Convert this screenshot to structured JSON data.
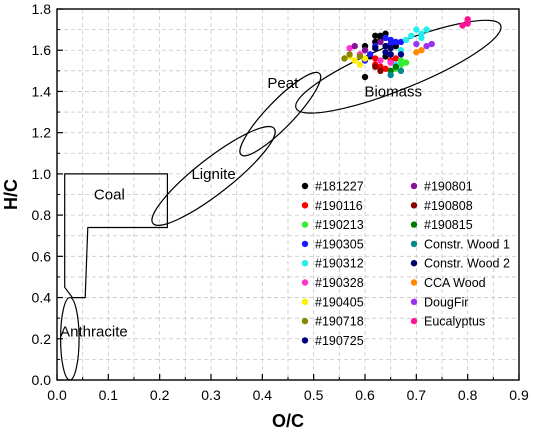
{
  "chart_data": {
    "type": "scatter",
    "xlabel": "O/C",
    "ylabel": "H/C",
    "xlim": [
      0,
      0.9
    ],
    "ylim": [
      0,
      1.8
    ],
    "xticks": [
      "0.0",
      "0.1",
      "0.2",
      "0.3",
      "0.4",
      "0.5",
      "0.6",
      "0.7",
      "0.8",
      "0.9"
    ],
    "yticks": [
      "0.0",
      "0.2",
      "0.4",
      "0.6",
      "0.8",
      "1.0",
      "1.2",
      "1.4",
      "1.6",
      "1.8"
    ],
    "grid": true,
    "legend_position": "right, inside plot",
    "regions": [
      {
        "label": "Anthracite",
        "shape": "ellipse",
        "cx": 0.025,
        "cy": 0.2,
        "rx": 0.018,
        "ry": 0.2
      },
      {
        "label": "Coal",
        "shape": "outline",
        "points": [
          [
            0.015,
            1.0
          ],
          [
            0.215,
            1.0
          ],
          [
            0.215,
            0.74
          ],
          [
            0.06,
            0.74
          ],
          [
            0.055,
            0.4
          ],
          [
            0.03,
            0.4
          ],
          [
            0.015,
            0.45
          ]
        ]
      },
      {
        "label": "Lignite",
        "shape": "ellipse",
        "cx": 0.305,
        "cy": 0.99,
        "rx": 0.15,
        "ry": 0.085,
        "angle_deg": -38
      },
      {
        "label": "Peat",
        "shape": "ellipse",
        "cx": 0.435,
        "cy": 1.29,
        "rx": 0.11,
        "ry": 0.065,
        "angle_deg": -46
      },
      {
        "label": "Biomass",
        "shape": "ellipse",
        "cx": 0.665,
        "cy": 1.52,
        "rx": 0.215,
        "ry": 0.11,
        "angle_deg": -22
      }
    ],
    "region_labels": [
      {
        "text": "Anthracite",
        "x": 0.072,
        "y": 0.235
      },
      {
        "text": "Coal",
        "x": 0.102,
        "y": 0.9
      },
      {
        "text": "Lignite",
        "x": 0.305,
        "y": 1.0
      },
      {
        "text": "Peat",
        "x": 0.44,
        "y": 1.44
      },
      {
        "text": "Biomass",
        "x": 0.655,
        "y": 1.4
      }
    ],
    "series": [
      {
        "name": "#181227",
        "color": "#000000",
        "points": [
          [
            0.62,
            1.67
          ],
          [
            0.63,
            1.67
          ],
          [
            0.64,
            1.68
          ],
          [
            0.6,
            1.62
          ],
          [
            0.62,
            1.64
          ],
          [
            0.63,
            1.65
          ],
          [
            0.61,
            1.57
          ],
          [
            0.6,
            1.47
          ],
          [
            0.64,
            1.57
          ],
          [
            0.66,
            1.62
          ]
        ]
      },
      {
        "name": "#190116",
        "color": "#ff0000",
        "points": [
          [
            0.62,
            1.53
          ],
          [
            0.63,
            1.52
          ],
          [
            0.64,
            1.51
          ],
          [
            0.65,
            1.55
          ],
          [
            0.62,
            1.56
          ],
          [
            0.66,
            1.56
          ]
        ]
      },
      {
        "name": "#190213",
        "color": "#33ee33",
        "points": [
          [
            0.67,
            1.53
          ],
          [
            0.66,
            1.51
          ],
          [
            0.67,
            1.55
          ],
          [
            0.65,
            1.58
          ],
          [
            0.68,
            1.54
          ]
        ]
      },
      {
        "name": "#190305",
        "color": "#1a1aff",
        "points": [
          [
            0.67,
            1.64
          ],
          [
            0.65,
            1.65
          ],
          [
            0.64,
            1.66
          ],
          [
            0.65,
            1.63
          ],
          [
            0.6,
            1.55
          ],
          [
            0.62,
            1.62
          ],
          [
            0.66,
            1.64
          ],
          [
            0.61,
            1.58
          ]
        ]
      },
      {
        "name": "#190312",
        "color": "#22eeee",
        "points": [
          [
            0.7,
            1.7
          ],
          [
            0.71,
            1.68
          ],
          [
            0.72,
            1.7
          ],
          [
            0.68,
            1.65
          ],
          [
            0.69,
            1.67
          ],
          [
            0.71,
            1.66
          ],
          [
            0.67,
            1.6
          ],
          [
            0.66,
            1.53
          ]
        ]
      },
      {
        "name": "#190328",
        "color": "#ff33cc",
        "points": [
          [
            0.57,
            1.61
          ],
          [
            0.59,
            1.58
          ],
          [
            0.63,
            1.55
          ],
          [
            0.65,
            1.54
          ]
        ]
      },
      {
        "name": "#190405",
        "color": "#ffee00",
        "points": [
          [
            0.57,
            1.57
          ],
          [
            0.58,
            1.55
          ],
          [
            0.6,
            1.56
          ],
          [
            0.59,
            1.53
          ]
        ]
      },
      {
        "name": "#190718",
        "color": "#888800",
        "points": [
          [
            0.56,
            1.56
          ],
          [
            0.57,
            1.58
          ],
          [
            0.59,
            1.57
          ]
        ]
      },
      {
        "name": "#190725",
        "color": "#000088",
        "points": [
          [
            0.65,
            1.58
          ],
          [
            0.64,
            1.59
          ],
          [
            0.67,
            1.58
          ]
        ]
      },
      {
        "name": "#190801",
        "color": "#881199",
        "points": [
          [
            0.63,
            1.64
          ],
          [
            0.6,
            1.6
          ],
          [
            0.58,
            1.62
          ]
        ]
      },
      {
        "name": "#190808",
        "color": "#880000",
        "points": [
          [
            0.63,
            1.5
          ],
          [
            0.62,
            1.52
          ]
        ]
      },
      {
        "name": "#190815",
        "color": "#007700",
        "points": [
          [
            0.66,
            1.52
          ],
          [
            0.65,
            1.5
          ]
        ]
      },
      {
        "name": "Constr. Wood 1",
        "color": "#008888",
        "points": [
          [
            0.67,
            1.5
          ],
          [
            0.65,
            1.48
          ]
        ]
      },
      {
        "name": "Constr. Wood 2",
        "color": "#000066",
        "points": [
          [
            0.64,
            1.62
          ],
          [
            0.65,
            1.61
          ],
          [
            0.62,
            1.61
          ]
        ]
      },
      {
        "name": "CCA Wood",
        "color": "#ff8800",
        "points": [
          [
            0.7,
            1.59
          ],
          [
            0.71,
            1.6
          ]
        ]
      },
      {
        "name": "DougFir",
        "color": "#9933ee",
        "points": [
          [
            0.72,
            1.62
          ],
          [
            0.73,
            1.63
          ],
          [
            0.7,
            1.63
          ]
        ]
      },
      {
        "name": "Eucalyptus",
        "color": "#ff1493",
        "points": [
          [
            0.8,
            1.74
          ],
          [
            0.8,
            1.73
          ],
          [
            0.79,
            1.72
          ],
          [
            0.8,
            1.75
          ]
        ]
      }
    ]
  }
}
